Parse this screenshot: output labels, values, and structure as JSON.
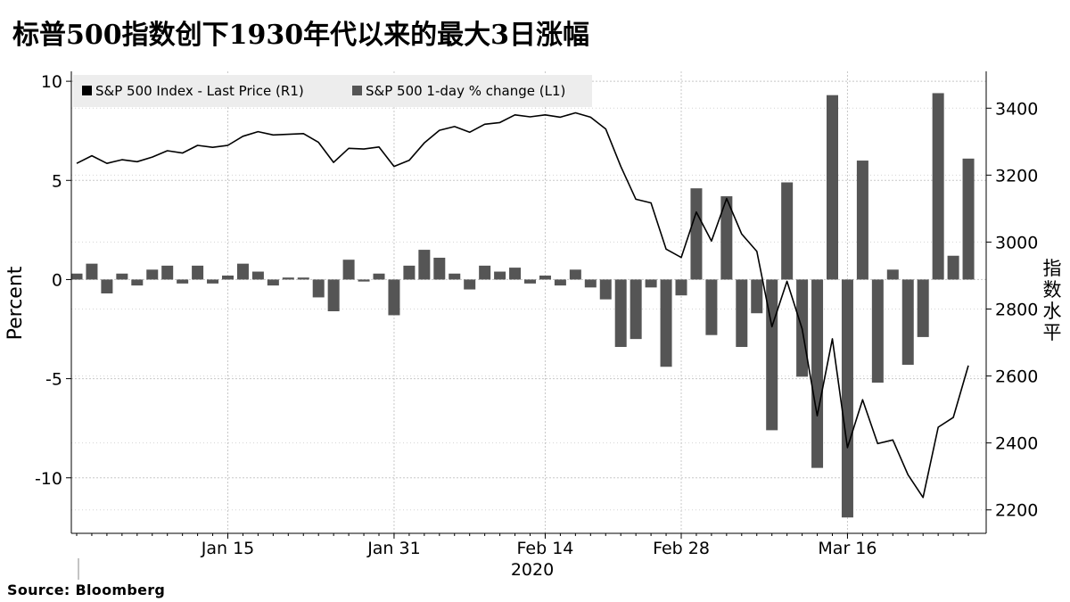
{
  "title": "标普500指数创下1930年代以来的最大3日涨幅",
  "source": "Source:  Bloomberg",
  "chart_data": {
    "type": "bar+line",
    "legend_position": "top-left",
    "grid": true,
    "left_axis": {
      "label": "Percent",
      "ylim": [
        -12.8,
        10.5
      ],
      "ticks": [
        10,
        5,
        0,
        -5,
        -10
      ],
      "tick_labels": [
        "10",
        "5",
        "0",
        "-5",
        "-10"
      ]
    },
    "right_axis": {
      "label": "指数水平",
      "ylim": [
        2130,
        3510
      ],
      "ticks": [
        3400,
        3200,
        3000,
        2800,
        2600,
        2400,
        2200
      ],
      "tick_labels": [
        "3400",
        "3200",
        "3000",
        "2800",
        "2600",
        "2400",
        "2200"
      ]
    },
    "x_tick_labels": [
      {
        "label": "Jan 15",
        "index": 10
      },
      {
        "label": "Jan 31",
        "index": 21
      },
      {
        "label": "Feb 14",
        "index": 31
      },
      {
        "label": "Feb 28",
        "index": 40
      },
      {
        "label": "Mar 16",
        "index": 51
      }
    ],
    "year_label": "2020",
    "series": [
      {
        "name": "S&P 500 Index - Last Price (R1)",
        "axis": "right",
        "color": "#000000",
        "kind": "line",
        "values": [
          3235,
          3258,
          3235,
          3246,
          3240,
          3254,
          3273,
          3266,
          3289,
          3283,
          3289,
          3316,
          3330,
          3320,
          3322,
          3324,
          3298,
          3238,
          3280,
          3278,
          3284,
          3226,
          3244,
          3296,
          3334,
          3345,
          3328,
          3352,
          3357,
          3380,
          3374,
          3380,
          3373,
          3386,
          3373,
          3338,
          3226,
          3128,
          3117,
          2979,
          2954,
          3090,
          3003,
          3130,
          3024,
          2972,
          2747,
          2883,
          2741,
          2481,
          2711,
          2386,
          2529,
          2398,
          2409,
          2305,
          2237,
          2447,
          2476,
          2631
        ]
      },
      {
        "name": "S&P 500 1-day % change (L1)",
        "axis": "left",
        "color": "#555555",
        "kind": "bar",
        "values": [
          0.3,
          0.8,
          -0.7,
          0.3,
          -0.3,
          0.5,
          0.7,
          -0.2,
          0.7,
          -0.2,
          0.2,
          0.8,
          0.4,
          -0.3,
          0.1,
          0.1,
          -0.9,
          -1.6,
          1.0,
          -0.1,
          0.3,
          -1.8,
          0.7,
          1.5,
          1.1,
          0.3,
          -0.5,
          0.7,
          0.4,
          0.6,
          -0.2,
          0.2,
          -0.3,
          0.5,
          -0.4,
          -1.0,
          -3.4,
          -3.0,
          -0.4,
          -4.4,
          -0.8,
          4.6,
          -2.8,
          4.2,
          -3.4,
          -1.7,
          -7.6,
          4.9,
          -4.9,
          -9.5,
          9.3,
          -12.0,
          6.0,
          -5.2,
          0.5,
          -4.3,
          -2.9,
          9.4,
          1.2,
          6.1
        ]
      }
    ]
  }
}
